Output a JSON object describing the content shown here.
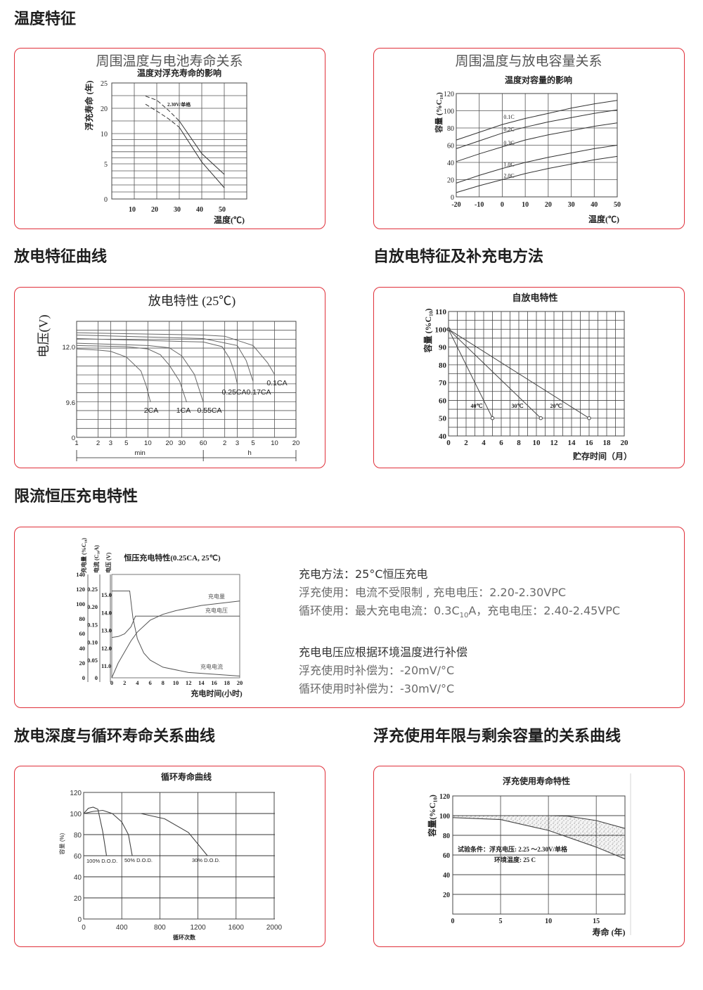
{
  "headings": [
    "温度特征",
    "放电特征曲线",
    "自放电特征及补充电方法",
    "限流恒压充电特性",
    "放电深度与循环寿命关系曲线",
    "浮充使用年限与剩余容量的关系曲线"
  ],
  "colors": {
    "border": "#e0303a",
    "heading": "#1e1e1e",
    "body_text": "#6a6a6a",
    "grid": "#555555",
    "line": "#333333"
  },
  "charge_text": {
    "line1": "充电方法：25°C恒压充电",
    "line2": "浮充使用：电流不受限制 , 充电电压：2.20-2.30VPC",
    "line3_a": "循环使用：最大充电电流：0.3C",
    "line3_sub": "10",
    "line3_b": "A，充电电压：2.40-2.45VPC",
    "line4": "充电电压应根据环境温度进行补偿",
    "line5": "浮充使用时补偿为：-20mV/°C",
    "line6": "循环使用时补偿为：-30mV/°C"
  },
  "chart_data": [
    {
      "type": "line",
      "panel_title": "周围温度与电池寿命关系",
      "title": "温度对浮充寿命的影响",
      "xlabel": "温度(℃)",
      "ylabel": "浮充寿命 (年)",
      "x_ticks": [
        10,
        20,
        30,
        40,
        50
      ],
      "y_ticks": [
        25,
        20,
        10,
        5,
        0
      ],
      "xlim": [
        0,
        60
      ],
      "ylim": [
        0,
        25
      ],
      "annotation": "2.30V/单格",
      "series": [
        {
          "points": [
            [
              15,
              22.4
            ],
            [
              20,
              21.6
            ],
            [
              25,
              19.4
            ],
            [
              30,
              15
            ],
            [
              40,
              6.7
            ],
            [
              50,
              3.5
            ]
          ]
        },
        {
          "points": [
            [
              15,
              20.8
            ],
            [
              20,
              18.9
            ],
            [
              25,
              16
            ],
            [
              30,
              12.5
            ],
            [
              40,
              5.3
            ],
            [
              50,
              1.6
            ]
          ]
        }
      ]
    },
    {
      "type": "line",
      "panel_title": "周围温度与放电容量关系",
      "title": "温度对容量的影响",
      "xlabel": "温度(℃)",
      "ylabel": "容量 (%C₁₀)",
      "x_ticks": [
        -20,
        -10,
        0,
        10,
        20,
        30,
        40,
        50
      ],
      "y_ticks": [
        0,
        20,
        40,
        60,
        80,
        100,
        120
      ],
      "xlim": [
        -20,
        50
      ],
      "ylim": [
        0,
        120
      ],
      "x": [
        -20,
        -10,
        0,
        10,
        20,
        30,
        40,
        50
      ],
      "series": [
        {
          "name": "0.1C",
          "values": [
            66,
            75,
            84,
            91,
            97,
            103,
            108,
            112
          ]
        },
        {
          "name": "0.2C",
          "values": [
            56,
            65,
            74,
            81,
            87,
            92,
            97,
            101
          ]
        },
        {
          "name": "0.3C",
          "values": [
            41,
            50,
            58,
            66,
            72,
            77,
            82,
            86
          ]
        },
        {
          "name": "1.0C",
          "values": [
            16,
            25,
            33,
            40,
            46,
            51,
            56,
            60
          ]
        },
        {
          "name": "2.0C",
          "values": [
            5,
            13,
            20,
            27,
            33,
            38,
            43,
            47
          ]
        }
      ]
    },
    {
      "type": "line",
      "title": "放电特性 (25℃)",
      "ylabel": "电压(V)",
      "x_scale": "log",
      "x_ticks": [
        "1",
        "2",
        "3",
        "5",
        "10",
        "20",
        "30",
        "60",
        "2",
        "3",
        "5",
        "10",
        "20"
      ],
      "x_tick_values": [
        1,
        2,
        3,
        5,
        10,
        20,
        30,
        60,
        120,
        180,
        300,
        600,
        1200
      ],
      "x_unit_min": "min",
      "x_unit_h": "h",
      "y_ticks": [
        "12.0",
        "9.6",
        "0"
      ],
      "series": [
        {
          "name": "2CA",
          "points": [
            [
              1,
              11.9
            ],
            [
              2,
              11.85
            ],
            [
              3,
              11.8
            ],
            [
              5,
              11.55
            ],
            [
              8,
              10.95
            ],
            [
              9.5,
              10.3
            ],
            [
              10.9,
              9.6
            ]
          ]
        },
        {
          "name": "1CA",
          "points": [
            [
              1,
              12.05
            ],
            [
              5,
              12.0
            ],
            [
              10,
              11.9
            ],
            [
              15,
              11.65
            ],
            [
              20,
              11.2
            ],
            [
              28,
              10.5
            ],
            [
              35,
              9.6
            ]
          ]
        },
        {
          "name": "0.55CA",
          "points": [
            [
              1,
              12.15
            ],
            [
              10,
              12.05
            ],
            [
              20,
              11.95
            ],
            [
              30,
              11.6
            ],
            [
              45,
              10.8
            ],
            [
              60,
              9.6
            ]
          ]
        },
        {
          "name": "0.25CA",
          "points": [
            [
              1,
              12.35
            ],
            [
              60,
              12.2
            ],
            [
              110,
              12.0
            ],
            [
              140,
              11.5
            ],
            [
              165,
              10.9
            ],
            [
              180,
              10.4
            ]
          ]
        },
        {
          "name": "0.17CA",
          "points": [
            [
              1,
              12.5
            ],
            [
              60,
              12.35
            ],
            [
              180,
              12.05
            ],
            [
              240,
              11.4
            ],
            [
              300,
              10.5
            ]
          ]
        },
        {
          "name": "0.1CA",
          "points": [
            [
              1,
              12.6
            ],
            [
              60,
              12.5
            ],
            [
              120,
              12.45
            ],
            [
              300,
              12.05
            ],
            [
              480,
              11.3
            ],
            [
              600,
              10.8
            ]
          ]
        }
      ]
    },
    {
      "type": "line",
      "title": "自放电特性",
      "xlabel": "贮存时间（月）",
      "ylabel": "容量 (%C₁₀)",
      "x_ticks": [
        0,
        2,
        4,
        6,
        8,
        10,
        12,
        14,
        16,
        18,
        20
      ],
      "y_ticks": [
        40,
        50,
        60,
        70,
        80,
        90,
        100,
        110
      ],
      "xlim": [
        0,
        20
      ],
      "ylim": [
        40,
        110
      ],
      "series": [
        {
          "name": "40℃",
          "points": [
            [
              0,
              100
            ],
            [
              5,
              50
            ]
          ]
        },
        {
          "name": "30℃",
          "points": [
            [
              0,
              100
            ],
            [
              10.5,
              50
            ]
          ]
        },
        {
          "name": "20℃",
          "points": [
            [
              0,
              100
            ],
            [
              16,
              50
            ]
          ]
        }
      ]
    },
    {
      "type": "line",
      "title": "恒压充电特性(0.25CA, 25℃)",
      "xlabel": "充电时间(小时)",
      "ylabel_charge": "充电量 (%C₁₀)",
      "ylabel_current": "电流 (C₁₀A)",
      "ylabel_voltage": "电压 (V)",
      "x_ticks": [
        0,
        2,
        4,
        6,
        8,
        10,
        12,
        14,
        16,
        18,
        20
      ],
      "y_ticks_charge": [
        0,
        20,
        40,
        60,
        80,
        100,
        120,
        140
      ],
      "y_ticks_current": [
        "0",
        "0.05",
        "0.10",
        "0.15",
        "0.20",
        "0.25"
      ],
      "y_ticks_voltage": [
        "11.0",
        "12.0",
        "13.0",
        "14.0",
        "15.0"
      ],
      "xlim": [
        0,
        20
      ],
      "series": [
        {
          "name": "充电量",
          "axis": "charge",
          "points": [
            [
              0,
              0
            ],
            [
              1,
              20
            ],
            [
              2,
              35
            ],
            [
              3,
              50
            ],
            [
              4,
              62
            ],
            [
              6,
              78
            ],
            [
              8,
              86
            ],
            [
              10,
              91
            ],
            [
              14,
              98
            ],
            [
              20,
              104
            ]
          ]
        },
        {
          "name": "充电电压",
          "axis": "voltage",
          "points": [
            [
              0,
              12.6
            ],
            [
              1,
              12.65
            ],
            [
              2,
              12.8
            ],
            [
              3,
              13.2
            ],
            [
              3.7,
              13.8
            ],
            [
              20,
              13.8
            ]
          ]
        },
        {
          "name": "充电电流",
          "axis": "current",
          "points": [
            [
              0,
              0.245
            ],
            [
              2.8,
              0.245
            ],
            [
              3.3,
              0.17
            ],
            [
              4,
              0.11
            ],
            [
              5,
              0.07
            ],
            [
              6,
              0.05
            ],
            [
              8,
              0.03
            ],
            [
              12,
              0.015
            ],
            [
              20,
              0.005
            ]
          ]
        }
      ]
    },
    {
      "type": "line",
      "title": "循环寿命曲线",
      "xlabel": "循环次数",
      "ylabel": "容量 (%)",
      "x_ticks": [
        0,
        400,
        800,
        1200,
        1600,
        2000
      ],
      "y_ticks": [
        0,
        20,
        40,
        60,
        80,
        100,
        120
      ],
      "xlim": [
        0,
        2000
      ],
      "ylim": [
        0,
        120
      ],
      "series": [
        {
          "name": "100% D.O.D.",
          "points": [
            [
              0,
              100
            ],
            [
              50,
              105
            ],
            [
              100,
              106
            ],
            [
              150,
              104
            ],
            [
              200,
              83
            ],
            [
              240,
              60
            ]
          ]
        },
        {
          "name": "50% D.O.D.",
          "points": [
            [
              0,
              100
            ],
            [
              100,
              102
            ],
            [
              200,
              103
            ],
            [
              300,
              100
            ],
            [
              400,
              92
            ],
            [
              470,
              80
            ],
            [
              510,
              60
            ]
          ]
        },
        {
          "name": "30% D.O.D.",
          "points": [
            [
              0,
              100
            ],
            [
              600,
              100
            ],
            [
              850,
              95
            ],
            [
              1100,
              82
            ],
            [
              1300,
              60
            ]
          ]
        }
      ]
    },
    {
      "type": "area",
      "title": "浮充使用寿命特性",
      "xlabel": "寿命 (年)",
      "ylabel": "容量(%C₁₀)",
      "x_ticks": [
        0,
        5,
        10,
        15
      ],
      "y_ticks": [
        20,
        40,
        60,
        80,
        100,
        120
      ],
      "xlim": [
        0,
        18
      ],
      "ylim": [
        0,
        120
      ],
      "annotation_1": "试验条件：浮充电压: 2.25 ～2.30V/单格",
      "annotation_2": "环境温度: 25 C",
      "upper": [
        [
          0,
          100
        ],
        [
          10,
          100
        ],
        [
          12,
          99.5
        ],
        [
          15,
          95
        ],
        [
          18,
          87
        ]
      ],
      "lower": [
        [
          0,
          98
        ],
        [
          5,
          96
        ],
        [
          10,
          85
        ],
        [
          15,
          68
        ],
        [
          18,
          56
        ]
      ]
    }
  ]
}
